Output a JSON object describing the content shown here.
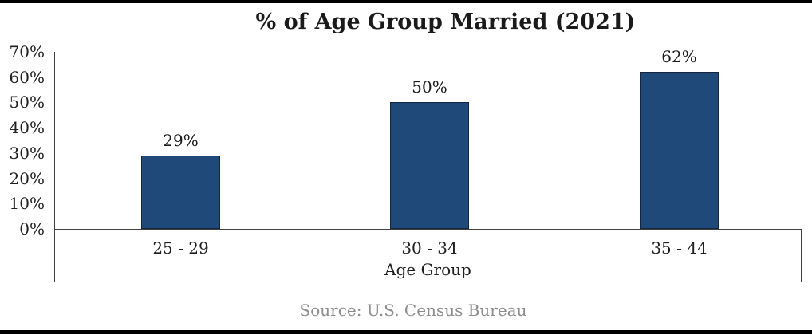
{
  "chart_data": {
    "type": "bar",
    "title": "% of Age Group Married (2021)",
    "categories": [
      "25 - 29",
      "30 - 34",
      "35 - 44"
    ],
    "values": [
      29,
      50,
      62
    ],
    "data_labels": [
      "29%",
      "50%",
      "62%"
    ],
    "xlabel": "Age Group",
    "ylabel": "",
    "ylim": [
      0,
      70
    ],
    "yticks": [
      "0%",
      "10%",
      "20%",
      "30%",
      "40%",
      "50%",
      "60%",
      "70%"
    ],
    "grid": false,
    "legend": "none",
    "bar_color": "#1F4978",
    "bar_border_color": "#14253C",
    "axis_line_color": "#404040",
    "text_color": "#1a1a1a"
  },
  "source": {
    "text": "Source: U.S. Census Bureau",
    "color": "#8C8C8C"
  }
}
